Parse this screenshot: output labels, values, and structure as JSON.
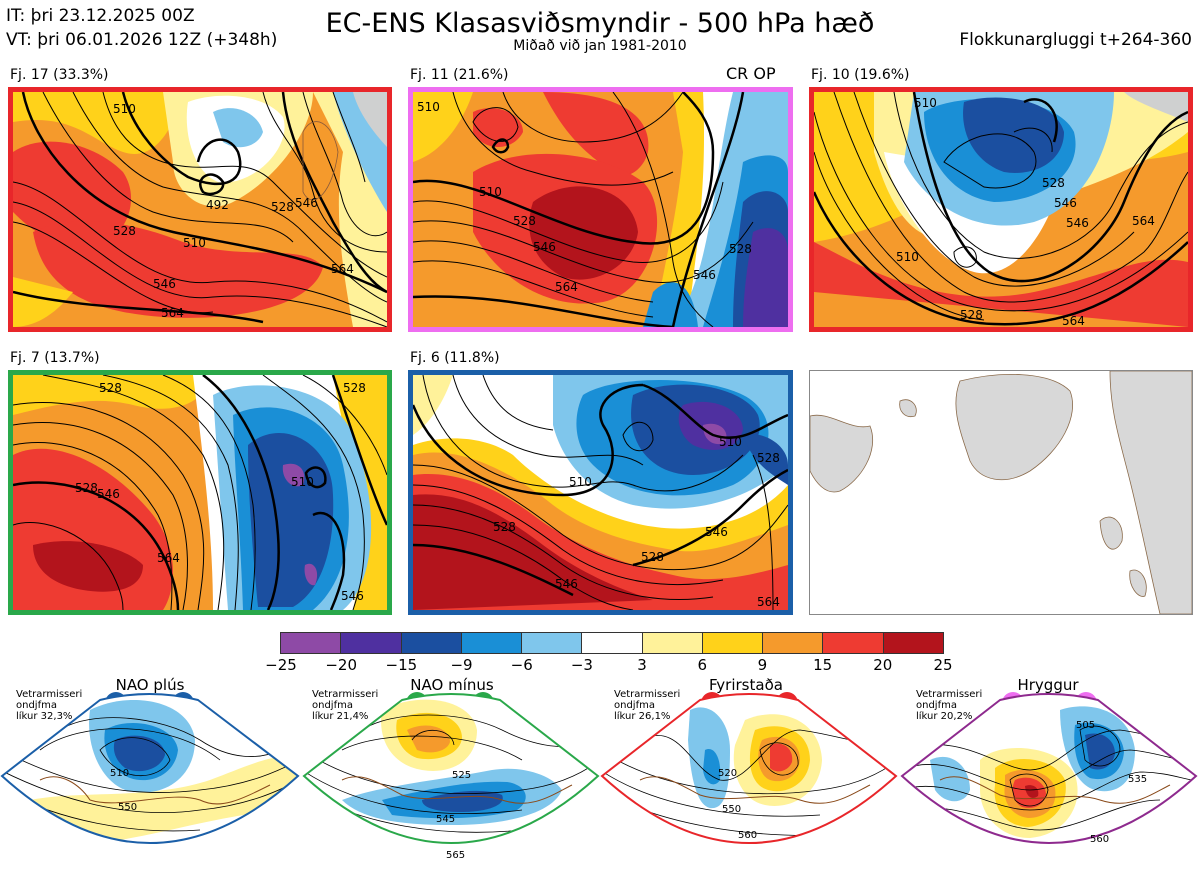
{
  "header": {
    "it": "IT: þri 23.12.2025 00Z",
    "vt": "VT: þri 06.01.2026 12Z  (+348h)",
    "title": "EC-ENS Klasasviðsmyndir - 500 hPa hæð",
    "subtitle": "Miðað við jan 1981-2010",
    "window": "Flokkunargluggi t+264-360"
  },
  "panels": [
    {
      "label": "Fj. 17 (33.3%)",
      "border": "#e8262a",
      "tag": ""
    },
    {
      "label": "Fj. 11 (21.6%)",
      "border": "#ee6ef0",
      "tag": "CR OP"
    },
    {
      "label": "Fj. 10 (19.6%)",
      "border": "#e8262a",
      "tag": ""
    },
    {
      "label": "Fj. 7 (13.7%)",
      "border": "#2aa84a",
      "tag": ""
    },
    {
      "label": "Fj. 6 (11.8%)",
      "border": "#1b5fa8",
      "tag": ""
    }
  ],
  "contour_labels": {
    "p1": [
      "492",
      "510",
      "528",
      "546",
      "564",
      "528",
      "546",
      "564",
      "510"
    ],
    "p2": [
      "510",
      "528",
      "546",
      "564",
      "528",
      "546",
      "510"
    ],
    "p3": [
      "510",
      "528",
      "546",
      "564",
      "510",
      "528",
      "546",
      "564"
    ],
    "p4": [
      "528",
      "546",
      "564",
      "510",
      "528",
      "546",
      "528"
    ],
    "p5": [
      "510",
      "528",
      "546",
      "564",
      "528",
      "546",
      "510",
      "528"
    ]
  },
  "colorbar": {
    "ticks": [
      "−25",
      "−20",
      "−15",
      "−9",
      "−6",
      "−3",
      "3",
      "6",
      "9",
      "15",
      "20",
      "25"
    ],
    "colors": [
      "#8e4aa6",
      "#4f30a0",
      "#1b4fa0",
      "#1a8fd6",
      "#7fc6ec",
      "#ffffff",
      "#fff29a",
      "#ffd21a",
      "#f59a2c",
      "#ee3b32",
      "#b3141c"
    ]
  },
  "regimes": [
    {
      "title": "NAO plús",
      "note": [
        "Vetrarmisseri",
        "ondjfma",
        "líkur 32,3%"
      ],
      "edge": "#1b5fa8",
      "dot": "#1b5fa8",
      "labels": [
        "510",
        "550"
      ]
    },
    {
      "title": "NAO mínus",
      "note": [
        "Vetrarmisseri",
        "ondjfma",
        "líkur 21,4%"
      ],
      "edge": "#2aa84a",
      "dot": "#2aa84a",
      "labels": [
        "525",
        "545",
        "565"
      ]
    },
    {
      "title": "Fyrirstaða",
      "note": [
        "Vetrarmisseri",
        "ondjfma",
        "líkur 26,1%"
      ],
      "edge": "#e8262a",
      "dot": "#e8262a",
      "labels": [
        "520",
        "550",
        "560"
      ]
    },
    {
      "title": "Hryggur",
      "note": [
        "Vetrarmisseri",
        "ondjfma",
        "líkur 20,2%"
      ],
      "edge": "#8e2a8e",
      "dot": "#ee6ef0",
      "labels": [
        "505",
        "535",
        "560"
      ]
    }
  ]
}
